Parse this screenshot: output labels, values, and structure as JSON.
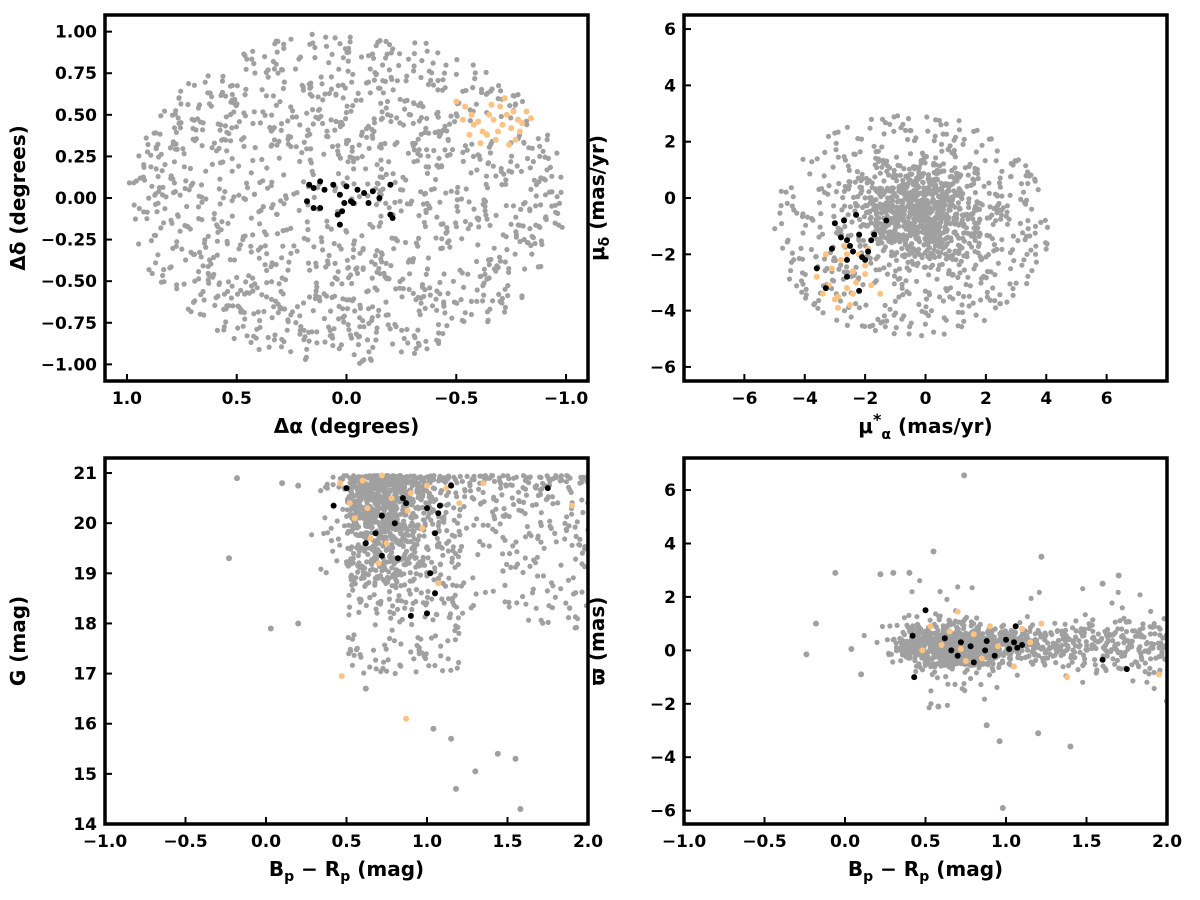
{
  "colors": {
    "field": "#a0a0a0",
    "orange": "#fdc27f",
    "black": "#000000"
  },
  "chart_data": [
    {
      "type": "scatter",
      "xlabel": "Δα (degrees)",
      "ylabel": "Δδ (degrees)",
      "xlim": [
        1.1,
        -1.1
      ],
      "ylim": [
        -1.1,
        1.1
      ],
      "xticks": [
        1.0,
        0.5,
        0.0,
        -0.5,
        -1.0
      ],
      "xtick_labels": [
        "1.0",
        "0.5",
        "0.0",
        "−0.5",
        "−1.0"
      ],
      "yticks": [
        1.0,
        0.75,
        0.5,
        0.25,
        0.0,
        -0.25,
        -0.5,
        -0.75,
        -1.0
      ],
      "ytick_labels": [
        "1.00",
        "0.75",
        "0.50",
        "0.25",
        "0.00",
        "−0.25",
        "−0.50",
        "−0.75",
        "−1.00"
      ],
      "series": [
        {
          "color": "#a0a0a0",
          "n": 1300,
          "generator": "disk",
          "params": {
            "r": 1.0
          }
        },
        {
          "color": "#fdc27f",
          "points": [
            [
              -0.5,
              0.58
            ],
            [
              -0.54,
              0.55
            ],
            [
              -0.57,
              0.5
            ],
            [
              -0.58,
              0.44
            ],
            [
              -0.6,
              0.46
            ],
            [
              -0.62,
              0.4
            ],
            [
              -0.64,
              0.38
            ],
            [
              -0.65,
              0.5
            ],
            [
              -0.67,
              0.47
            ],
            [
              -0.68,
              0.35
            ],
            [
              -0.7,
              0.55
            ],
            [
              -0.71,
              0.44
            ],
            [
              -0.72,
              0.6
            ],
            [
              -0.73,
              0.5
            ],
            [
              -0.74,
              0.32
            ],
            [
              -0.75,
              0.42
            ],
            [
              -0.76,
              0.52
            ],
            [
              -0.78,
              0.47
            ],
            [
              -0.79,
              0.4
            ],
            [
              -0.8,
              0.45
            ],
            [
              -0.82,
              0.52
            ],
            [
              -0.84,
              0.48
            ],
            [
              -0.53,
              0.47
            ],
            [
              -0.61,
              0.33
            ],
            [
              -0.69,
              0.4
            ],
            [
              -0.77,
              0.35
            ],
            [
              -0.66,
              0.56
            ],
            [
              -0.56,
              0.38
            ]
          ]
        },
        {
          "color": "#000000",
          "points": [
            [
              0.17,
              0.08
            ],
            [
              0.15,
              0.06
            ],
            [
              0.12,
              0.1
            ],
            [
              0.1,
              0.05
            ],
            [
              0.06,
              0.08
            ],
            [
              0.03,
              0.02
            ],
            [
              0.0,
              0.07
            ],
            [
              -0.02,
              -0.02
            ],
            [
              -0.05,
              0.05
            ],
            [
              -0.08,
              0.03
            ],
            [
              -0.1,
              -0.03
            ],
            [
              -0.12,
              0.04
            ],
            [
              -0.15,
              0.0
            ],
            [
              -0.2,
              -0.1
            ],
            [
              -0.21,
              -0.12
            ],
            [
              -0.2,
              0.08
            ],
            [
              0.15,
              -0.06
            ],
            [
              0.12,
              -0.06
            ],
            [
              0.02,
              -0.08
            ],
            [
              0.04,
              -0.1
            ],
            [
              0.03,
              -0.16
            ],
            [
              0.01,
              -0.03
            ],
            [
              0.18,
              -0.02
            ],
            [
              -0.03,
              -0.03
            ]
          ]
        }
      ]
    },
    {
      "type": "scatter",
      "xlabel": "μ*α (mas/yr)",
      "ylabel": "μδ (mas/yr)",
      "xlim": [
        -8,
        8
      ],
      "ylim": [
        -6.5,
        6.5
      ],
      "xticks": [
        -6,
        -4,
        -2,
        0,
        2,
        4,
        6
      ],
      "xtick_labels": [
        "−6",
        "−4",
        "−2",
        "0",
        "2",
        "4",
        "6"
      ],
      "yticks": [
        6,
        4,
        2,
        0,
        -2,
        -4,
        -6
      ],
      "ytick_labels": [
        "6",
        "4",
        "2",
        "0",
        "−2",
        "−4",
        "−6"
      ],
      "series": [
        {
          "color": "#a0a0a0",
          "n": 1300,
          "generator": "pm",
          "params": {
            "cx": -0.5,
            "cy": -1.0,
            "r": 4.0,
            "xmin": -5.0,
            "xmax": 4.8
          }
        },
        {
          "color": "#fdc27f",
          "points": [
            [
              -2.9,
              -3.9
            ],
            [
              -2.5,
              -3.8
            ],
            [
              -3.0,
              -3.6
            ],
            [
              -2.4,
              -3.4
            ],
            [
              -3.4,
              -3.4
            ],
            [
              -2.0,
              -2.4
            ],
            [
              -2.2,
              -2.0
            ],
            [
              -2.8,
              -2.2
            ],
            [
              -2.6,
              -3.2
            ],
            [
              -3.2,
              -3.1
            ],
            [
              -2.3,
              -3.0
            ],
            [
              -1.5,
              -3.4
            ],
            [
              -3.6,
              -2.8
            ],
            [
              -2.0,
              -2.7
            ],
            [
              -2.7,
              -1.7
            ],
            [
              -3.1,
              -2.5
            ],
            [
              -1.9,
              -1.8
            ],
            [
              -2.4,
              -2.6
            ],
            [
              -2.9,
              -3.5
            ],
            [
              -3.3,
              -2.0
            ],
            [
              -1.8,
              -3.1
            ],
            [
              -2.6,
              -2.0
            ]
          ]
        },
        {
          "color": "#000000",
          "points": [
            [
              -3.6,
              -2.5
            ],
            [
              -3.0,
              -0.9
            ],
            [
              -2.7,
              -0.8
            ],
            [
              -2.3,
              -0.6
            ],
            [
              -2.2,
              -1.3
            ],
            [
              -2.6,
              -1.5
            ],
            [
              -2.5,
              -1.7
            ],
            [
              -2.1,
              -2.1
            ],
            [
              -2.0,
              -2.2
            ],
            [
              -1.8,
              -1.5
            ],
            [
              -1.7,
              -1.3
            ],
            [
              -1.9,
              -1.9
            ],
            [
              -1.3,
              -0.8
            ],
            [
              -2.6,
              -2.2
            ],
            [
              -2.2,
              -3.3
            ],
            [
              -2.6,
              -2.8
            ],
            [
              -3.3,
              -3.2
            ],
            [
              -3.1,
              -1.8
            ],
            [
              -2.8,
              -1.4
            ],
            [
              -2.4,
              -1.9
            ]
          ]
        }
      ]
    },
    {
      "type": "scatter",
      "xlabel": "Bp − Rp (mag)",
      "ylabel": "G (mag)",
      "xlim": [
        -1.0,
        2.0
      ],
      "ylim": [
        14.0,
        21.3
      ],
      "xticks": [
        -1.0,
        -0.5,
        0.0,
        0.5,
        1.0,
        1.5,
        2.0
      ],
      "xtick_labels": [
        "−1.0",
        "−0.5",
        "0.0",
        "0.5",
        "1.0",
        "1.5",
        "2.0"
      ],
      "yticks": [
        21,
        20,
        19,
        18,
        17,
        16,
        15,
        14
      ],
      "ytick_labels": [
        "21",
        "20",
        "19",
        "18",
        "17",
        "16",
        "15",
        "14"
      ],
      "series": [
        {
          "color": "#a0a0a0",
          "n": 1300,
          "generator": "cmd",
          "params": {}
        },
        {
          "color": "#a0a0a0",
          "points": [
            [
              -0.23,
              19.3
            ],
            [
              0.03,
              17.9
            ],
            [
              0.2,
              18.0
            ],
            [
              0.1,
              20.8
            ],
            [
              0.2,
              20.75
            ],
            [
              1.04,
              15.9
            ],
            [
              1.15,
              15.7
            ],
            [
              1.3,
              15.05
            ],
            [
              1.44,
              15.4
            ],
            [
              1.55,
              15.3
            ],
            [
              1.58,
              14.3
            ],
            [
              1.18,
              14.7
            ],
            [
              0.62,
              16.7
            ],
            [
              -0.18,
              20.9
            ]
          ]
        },
        {
          "color": "#fdc27f",
          "points": [
            [
              0.46,
              20.8
            ],
            [
              0.55,
              20.1
            ],
            [
              0.6,
              20.85
            ],
            [
              0.72,
              20.95
            ],
            [
              0.78,
              20.5
            ],
            [
              0.9,
              20.6
            ],
            [
              1.0,
              20.75
            ],
            [
              1.12,
              20.7
            ],
            [
              1.2,
              20.4
            ],
            [
              0.65,
              19.7
            ],
            [
              0.75,
              19.6
            ],
            [
              0.7,
              19.2
            ],
            [
              0.88,
              20.25
            ],
            [
              1.07,
              18.8
            ],
            [
              1.0,
              18.2
            ],
            [
              0.47,
              16.95
            ],
            [
              0.87,
              16.1
            ],
            [
              1.35,
              20.8
            ],
            [
              1.9,
              20.35
            ],
            [
              0.52,
              20.4
            ],
            [
              0.97,
              19.9
            ],
            [
              0.63,
              20.3
            ]
          ]
        },
        {
          "color": "#000000",
          "points": [
            [
              0.42,
              20.35
            ],
            [
              0.5,
              20.7
            ],
            [
              0.72,
              20.15
            ],
            [
              0.85,
              20.5
            ],
            [
              0.87,
              20.4
            ],
            [
              1.0,
              20.3
            ],
            [
              1.08,
              20.35
            ],
            [
              1.07,
              20.2
            ],
            [
              1.15,
              20.75
            ],
            [
              1.75,
              20.7
            ],
            [
              0.62,
              19.6
            ],
            [
              0.68,
              19.8
            ],
            [
              0.72,
              19.35
            ],
            [
              0.82,
              19.3
            ],
            [
              1.05,
              19.8
            ],
            [
              1.02,
              19.0
            ],
            [
              1.05,
              18.6
            ],
            [
              0.9,
              18.15
            ],
            [
              1.0,
              18.2
            ],
            [
              0.8,
              20.0
            ]
          ]
        }
      ]
    },
    {
      "type": "scatter",
      "xlabel": "Bp − Rp (mag)",
      "ylabel": "ϖ (mas)",
      "xlim": [
        -1.0,
        2.0
      ],
      "ylim": [
        -6.5,
        7.2
      ],
      "xticks": [
        -1.0,
        -0.5,
        0.0,
        0.5,
        1.0,
        1.5,
        2.0
      ],
      "xtick_labels": [
        "−1.0",
        "−0.5",
        "0.0",
        "0.5",
        "1.0",
        "1.5",
        "2.0"
      ],
      "yticks": [
        6,
        4,
        2,
        0,
        -2,
        -4,
        -6
      ],
      "ytick_labels": [
        "6",
        "4",
        "2",
        "0",
        "−2",
        "−4",
        "−6"
      ],
      "series": [
        {
          "color": "#a0a0a0",
          "n": 1300,
          "generator": "plx",
          "params": {}
        },
        {
          "color": "#a0a0a0",
          "points": [
            [
              0.74,
              6.55
            ],
            [
              0.98,
              -5.9
            ],
            [
              -0.06,
              2.9
            ],
            [
              -0.18,
              1.0
            ],
            [
              -0.24,
              -0.15
            ],
            [
              0.04,
              0.05
            ],
            [
              0.55,
              3.7
            ],
            [
              0.3,
              2.9
            ],
            [
              0.22,
              2.85
            ],
            [
              0.4,
              2.9
            ],
            [
              1.22,
              3.5
            ],
            [
              0.96,
              -3.4
            ],
            [
              1.4,
              -3.6
            ],
            [
              1.6,
              2.5
            ],
            [
              1.7,
              2.8
            ],
            [
              0.88,
              -2.8
            ],
            [
              2.0,
              -1.9
            ],
            [
              0.1,
              -0.9
            ],
            [
              1.2,
              -3.1
            ],
            [
              0.58,
              -2.1
            ]
          ]
        },
        {
          "color": "#fdc27f",
          "points": [
            [
              0.48,
              0.0
            ],
            [
              0.53,
              0.9
            ],
            [
              0.6,
              0.2
            ],
            [
              0.7,
              1.45
            ],
            [
              0.75,
              -0.4
            ],
            [
              0.8,
              0.6
            ],
            [
              0.9,
              0.9
            ],
            [
              0.95,
              0.15
            ],
            [
              1.05,
              -0.6
            ],
            [
              1.1,
              0.8
            ],
            [
              1.22,
              1.0
            ],
            [
              1.38,
              -1.0
            ],
            [
              1.95,
              -0.9
            ],
            [
              0.85,
              -0.3
            ],
            [
              1.0,
              0.4
            ],
            [
              0.65,
              0.7
            ],
            [
              0.72,
              0.05
            ],
            [
              1.15,
              0.3
            ]
          ]
        },
        {
          "color": "#000000",
          "points": [
            [
              0.42,
              0.55
            ],
            [
              0.43,
              -1.0
            ],
            [
              0.5,
              1.5
            ],
            [
              0.62,
              0.45
            ],
            [
              0.66,
              0.0
            ],
            [
              0.7,
              -0.2
            ],
            [
              0.72,
              0.3
            ],
            [
              0.8,
              -0.45
            ],
            [
              0.87,
              0.0
            ],
            [
              0.88,
              0.35
            ],
            [
              1.0,
              0.4
            ],
            [
              1.02,
              0.05
            ],
            [
              1.05,
              0.3
            ],
            [
              1.06,
              0.9
            ],
            [
              1.07,
              0.1
            ],
            [
              1.1,
              0.2
            ],
            [
              1.6,
              -0.35
            ],
            [
              1.75,
              -0.7
            ],
            [
              0.78,
              0.15
            ],
            [
              0.93,
              -0.2
            ]
          ]
        }
      ]
    }
  ]
}
